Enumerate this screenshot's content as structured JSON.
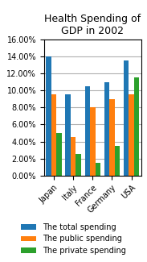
{
  "chart_data": {
    "type": "bar",
    "title": "Health Spending of GDP in 2002",
    "categories": [
      "Japan",
      "Italy",
      "France",
      "Germany",
      "USA"
    ],
    "series": [
      {
        "name": "The total spending",
        "values": [
          14.0,
          9.5,
          10.5,
          11.0,
          13.5
        ]
      },
      {
        "name": "The public spending",
        "values": [
          9.5,
          4.5,
          8.0,
          9.0,
          9.5
        ]
      },
      {
        "name": "The private spending",
        "values": [
          5.0,
          2.5,
          1.5,
          3.5,
          11.5
        ]
      }
    ],
    "ylim": [
      0,
      16
    ],
    "yticks": [
      {
        "value": 0,
        "label": "0.00%"
      },
      {
        "value": 2,
        "label": "2.00%"
      },
      {
        "value": 4,
        "label": "4.00%"
      },
      {
        "value": 6,
        "label": "6.00%"
      },
      {
        "value": 8,
        "label": "8.00%"
      },
      {
        "value": 10,
        "label": "10.00%"
      },
      {
        "value": 12,
        "label": "12.00%"
      },
      {
        "value": 14,
        "label": "14.00%"
      },
      {
        "value": 16,
        "label": "16.00%"
      }
    ],
    "grid": true,
    "legend": "lower center"
  }
}
